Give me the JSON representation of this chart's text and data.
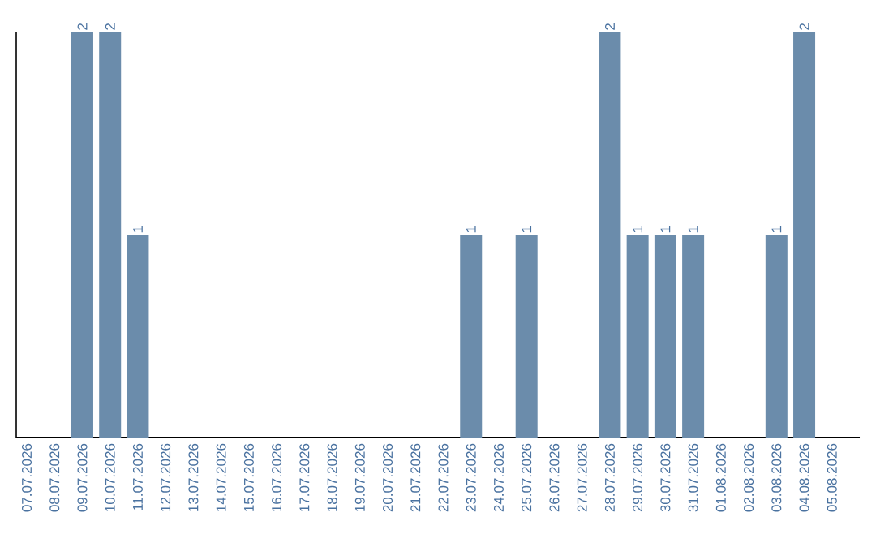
{
  "chart_data": {
    "type": "bar",
    "categories": [
      "07.07.2026",
      "08.07.2026",
      "09.07.2026",
      "10.07.2026",
      "11.07.2026",
      "12.07.2026",
      "13.07.2026",
      "14.07.2026",
      "15.07.2026",
      "16.07.2026",
      "17.07.2026",
      "18.07.2026",
      "19.07.2026",
      "20.07.2026",
      "21.07.2026",
      "22.07.2026",
      "23.07.2026",
      "24.07.2026",
      "25.07.2026",
      "26.07.2026",
      "27.07.2026",
      "28.07.2026",
      "29.07.2026",
      "30.07.2026",
      "31.07.2026",
      "01.08.2026",
      "02.08.2026",
      "03.08.2026",
      "04.08.2026",
      "05.08.2026"
    ],
    "values": [
      0,
      0,
      2,
      2,
      1,
      0,
      0,
      0,
      0,
      0,
      0,
      0,
      0,
      0,
      0,
      0,
      1,
      0,
      1,
      0,
      0,
      2,
      1,
      1,
      1,
      0,
      0,
      1,
      2,
      0
    ],
    "value_labels": [
      null,
      null,
      "2",
      "2",
      "1",
      null,
      null,
      null,
      null,
      null,
      null,
      null,
      null,
      null,
      null,
      null,
      "1",
      null,
      "1",
      null,
      null,
      "2",
      "1",
      "1",
      "1",
      null,
      null,
      "1",
      "2",
      null
    ],
    "color": "#6b8cab",
    "ylim": [
      0,
      2
    ],
    "tick_labels": "x"
  }
}
